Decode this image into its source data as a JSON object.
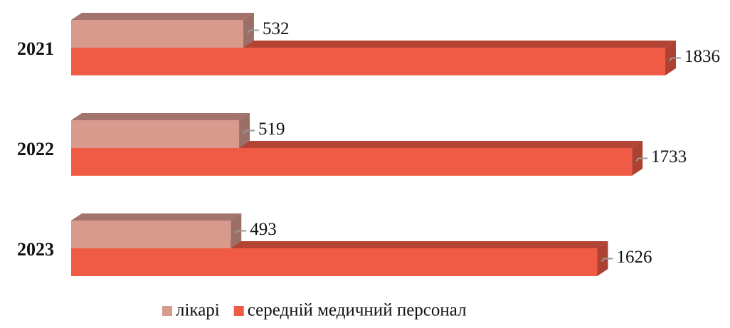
{
  "chart_data": {
    "type": "bar3d_horizontal",
    "categories": [
      "2021",
      "2022",
      "2023"
    ],
    "series": [
      {
        "name": "лікарі",
        "color": "#d99a8e",
        "values": [
          532,
          519,
          493
        ]
      },
      {
        "name": "середній медичний персонал",
        "color": "#ef5b45",
        "values": [
          1836,
          1733,
          1626
        ]
      }
    ],
    "legend": "bottom"
  }
}
